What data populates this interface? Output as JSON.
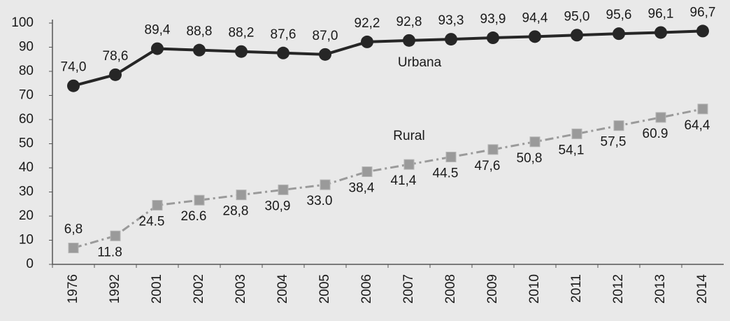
{
  "chart_data": {
    "type": "line",
    "categories": [
      "1976",
      "1992",
      "2001",
      "2002",
      "2003",
      "2004",
      "2005",
      "2006",
      "2007",
      "2008",
      "2009",
      "2010",
      "2011",
      "2012",
      "2013",
      "2014"
    ],
    "series": [
      {
        "name": "Urbana",
        "color": "#262626",
        "marker": "circle",
        "dash": "solid",
        "values": [
          74.0,
          78.6,
          89.4,
          88.8,
          88.2,
          87.6,
          87.0,
          92.2,
          92.8,
          93.3,
          93.9,
          94.4,
          95.0,
          95.6,
          96.1,
          96.7
        ],
        "value_labels": [
          "74,0",
          "78,6",
          "89,4",
          "88,8",
          "88,2",
          "87,6",
          "87,0",
          "92,2",
          "92,8",
          "93,3",
          "93,9",
          "94,4",
          "95,0",
          "95,6",
          "96,1",
          "96,7"
        ]
      },
      {
        "name": "Rural",
        "color": "#9a9a9a",
        "marker": "square",
        "dash": "dashdot",
        "values": [
          6.8,
          11.8,
          24.5,
          26.6,
          28.8,
          30.9,
          33.0,
          38.4,
          41.4,
          44.5,
          47.6,
          50.8,
          54.1,
          57.5,
          60.9,
          64.4
        ],
        "value_labels": [
          "6,8",
          "11.8",
          "24.5",
          "26.6",
          "28,8",
          "30,9",
          "33.0",
          "38,4",
          "41,4",
          "44.5",
          "47,6",
          "50,8",
          "54,1",
          "57,5",
          "60.9",
          "64,4"
        ]
      }
    ],
    "ylim": [
      0,
      100
    ],
    "yticks": [
      0,
      10,
      20,
      30,
      40,
      50,
      60,
      70,
      80,
      90,
      100
    ],
    "grid": false
  }
}
